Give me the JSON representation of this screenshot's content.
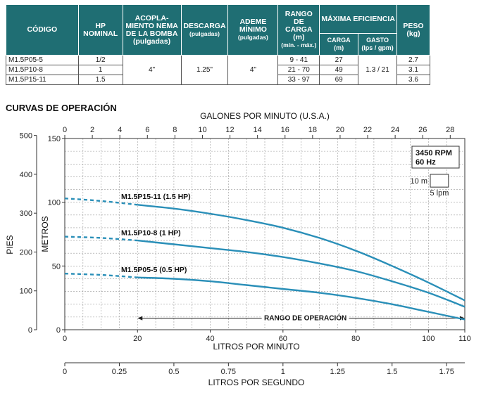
{
  "table": {
    "headers": {
      "codigo": "CÓDIGO",
      "hp": "HP NOMINAL",
      "acople": "ACOPLA-MIENTO NEMA DE LA BOMBA",
      "acople_unit": "(pulgadas)",
      "descarga": "DESCARGA",
      "descarga_unit": "(pulgadas)",
      "ademe": "ADEME MÍNIMO",
      "ademe_unit": "(pulgadas)",
      "rango": "RANGO DE CARGA",
      "rango_unit": "(m)",
      "rango_sub": "(mín. - máx.)",
      "eficiencia": "MÁXIMA EFICIENCIA",
      "carga": "CARGA",
      "carga_unit": "(m)",
      "gasto": "GASTO",
      "gasto_unit": "(lps / gpm)",
      "peso": "PESO",
      "peso_unit": "(kg)"
    },
    "rows": [
      {
        "codigo": "M1.5P05-5",
        "hp": "1/2",
        "rango": "9 - 41",
        "carga": "27",
        "peso": "2.7"
      },
      {
        "codigo": "M1.5P10-8",
        "hp": "1",
        "rango": "21 - 70",
        "carga": "49",
        "peso": "3.1"
      },
      {
        "codigo": "M1.5P15-11",
        "hp": "1.5",
        "rango": "33 - 97",
        "carga": "69",
        "peso": "3.6"
      }
    ],
    "shared": {
      "acople": "4\"",
      "descarga": "1.25\"",
      "ademe": "4\"",
      "gasto": "1.3 / 21"
    }
  },
  "section_title": "CURVAS DE OPERACIÓN",
  "chart_data": {
    "type": "line",
    "title": "",
    "top_axis_label": "GALONES POR MINUTO (U.S.A.)",
    "top_ticks": [
      0,
      2,
      4,
      6,
      8,
      10,
      12,
      14,
      16,
      18,
      20,
      22,
      24,
      26,
      28
    ],
    "xlabel": "LITROS POR MINUTO",
    "x_ticks": [
      0,
      20,
      40,
      60,
      80,
      100,
      110
    ],
    "xlim": [
      0,
      110
    ],
    "bottom_axis_label": "LITROS POR SEGUNDO",
    "bottom_ticks": [
      "0",
      "0.25",
      "0.5",
      "0.75",
      "1",
      "1.25",
      "1.5",
      "1.75"
    ],
    "bottom_tick_values": [
      0,
      0.25,
      0.5,
      0.75,
      1,
      1.25,
      1.5,
      1.75
    ],
    "ylabel_left": "PIES",
    "ft_ticks": [
      0,
      100,
      200,
      300,
      400,
      500
    ],
    "ylabel": "METROS",
    "y_ticks": [
      0,
      50,
      100,
      150
    ],
    "ylim": [
      0,
      150
    ],
    "grid": true,
    "info_box": {
      "speed": "3450 RPM",
      "freq": "60 Hz"
    },
    "scale_legend": {
      "vertical": "10 m",
      "horizontal": "5 lpm"
    },
    "operating_range": {
      "label": "RANGO DE OPERACIÓN",
      "from": 20,
      "to": 110
    },
    "dashed_until": 20,
    "series": [
      {
        "name": "M1.5P15-11 (1.5 HP)",
        "x": [
          0,
          10,
          20,
          30,
          40,
          50,
          60,
          70,
          80,
          90,
          100,
          110
        ],
        "y": [
          103,
          101,
          98,
          95,
          91,
          86,
          80,
          72,
          62,
          50,
          37,
          23
        ]
      },
      {
        "name": "M1.5P10-8 (1 HP)",
        "x": [
          0,
          10,
          20,
          30,
          40,
          50,
          60,
          70,
          80,
          90,
          100,
          110
        ],
        "y": [
          73,
          72,
          70,
          67,
          64,
          61,
          57,
          52,
          46,
          38,
          29,
          18
        ]
      },
      {
        "name": "M1.5P05-5 (0.5 HP)",
        "x": [
          0,
          10,
          20,
          30,
          40,
          50,
          60,
          70,
          80,
          90,
          100,
          110
        ],
        "y": [
          44,
          43,
          41,
          40,
          38,
          35,
          32,
          29,
          25,
          20,
          14,
          8
        ]
      }
    ],
    "series_color": "#2a8fb8",
    "grid_color": "#9a9a9a"
  }
}
